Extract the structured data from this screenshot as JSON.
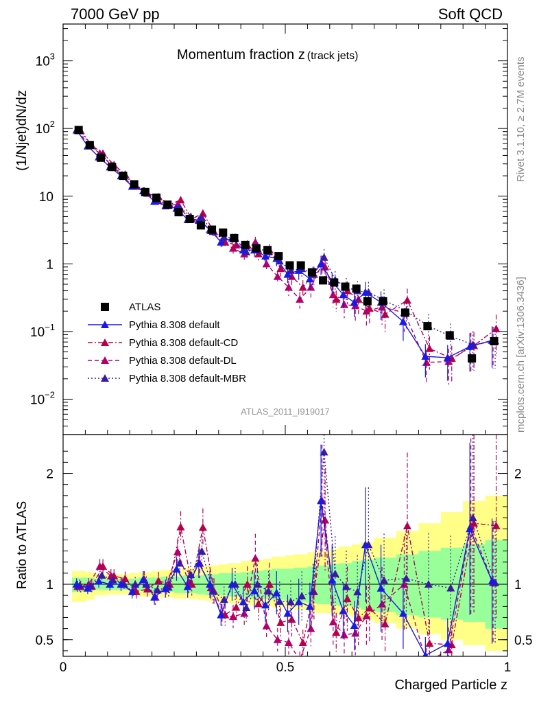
{
  "header": {
    "left": "7000 GeV pp",
    "right": "Soft QCD"
  },
  "side_labels": {
    "rivet": "Rivet 3.1.10, ≥ 2.7M events",
    "mcplots": "mcplots.cern.ch [arXiv:1306.3436]"
  },
  "chart_data": [
    {
      "panel": "main",
      "type": "scatter",
      "title": "Momentum fraction z",
      "title_sub": "(track jets)",
      "ylabel": "(1/Njet)dN/dz",
      "xlabel": "",
      "y_scale": "log",
      "xlim": [
        0,
        1
      ],
      "ylim": [
        0.003,
        3500
      ],
      "y_ticks": [
        {
          "value": 0.01,
          "label": "10",
          "sup": "−2"
        },
        {
          "value": 0.1,
          "label": "10",
          "sup": "−1"
        },
        {
          "value": 1,
          "label": "1",
          "sup": ""
        },
        {
          "value": 10,
          "label": "10",
          "sup": ""
        },
        {
          "value": 100,
          "label": "10",
          "sup": "2"
        },
        {
          "value": 1000,
          "label": "10",
          "sup": "3"
        }
      ],
      "analysis_label": "ATLAS_2011_I919017",
      "legend_position": "bottom-left",
      "x": [
        0.035,
        0.06,
        0.085,
        0.11,
        0.135,
        0.16,
        0.185,
        0.21,
        0.235,
        0.26,
        0.285,
        0.31,
        0.335,
        0.36,
        0.385,
        0.41,
        0.435,
        0.46,
        0.485,
        0.51,
        0.535,
        0.56,
        0.585,
        0.61,
        0.635,
        0.66,
        0.685,
        0.72,
        0.77,
        0.82,
        0.87,
        0.92,
        0.97
      ],
      "series": [
        {
          "name": "ATLAS",
          "color": "#000000",
          "style": "square",
          "values": [
            95,
            57,
            37,
            27,
            20,
            15,
            11.5,
            9.5,
            7.5,
            5.8,
            4.6,
            3.7,
            3.2,
            2.9,
            2.4,
            1.9,
            1.7,
            1.6,
            1.3,
            0.95,
            0.95,
            0.75,
            0.57,
            0.53,
            0.46,
            0.43,
            0.28,
            0.28,
            0.19,
            0.12,
            0.088,
            0.04,
            0.072
          ]
        },
        {
          "name": "Pythia 8.308 default",
          "color": "#1a1ae6",
          "style": "solid",
          "values": [
            95,
            55,
            38,
            27,
            20,
            14,
            12,
            8.4,
            7.2,
            6.6,
            4.5,
            4.4,
            3.2,
            2.1,
            2.4,
            1.6,
            1.6,
            1.3,
            1.2,
            0.7,
            0.8,
            0.6,
            1.0,
            0.55,
            0.35,
            0.27,
            0.38,
            0.27,
            0.14,
            0.043,
            0.041,
            0.06,
            0.074
          ]
        },
        {
          "name": "Pythia 8.308 default-CD",
          "color": "#b8004c",
          "style": "dashdot",
          "values": [
            93,
            56,
            43,
            29,
            21,
            14,
            11,
            9.8,
            7.5,
            8.8,
            4.6,
            5.6,
            3.0,
            2.1,
            1.9,
            1.9,
            1.4,
            1.6,
            0.85,
            0.65,
            0.45,
            0.7,
            0.9,
            0.3,
            0.4,
            0.3,
            0.22,
            0.18,
            0.29,
            0.056,
            0.04,
            0.062,
            0.11
          ]
        },
        {
          "name": "Pythia 8.308 default-DL",
          "color": "#b3006b",
          "style": "dashed",
          "values": [
            93,
            57,
            43,
            29,
            20,
            14,
            12,
            8.4,
            7.4,
            7.5,
            4.7,
            4.4,
            3.1,
            2.1,
            1.7,
            1.4,
            2.1,
            1.0,
            0.65,
            0.45,
            0.3,
            0.45,
            1.0,
            0.35,
            0.25,
            0.24,
            0.2,
            0.23,
            0.19,
            0.035,
            0.036,
            0.061,
            0.073
          ]
        },
        {
          "name": "Pythia 8.308 default-MBR",
          "color": "#3a1aa0",
          "style": "dotted",
          "values": [
            94,
            56,
            40,
            28,
            20,
            15,
            11.5,
            9.0,
            7.3,
            6.9,
            5.0,
            4.8,
            3.0,
            2.5,
            2.4,
            1.5,
            1.7,
            1.5,
            1.1,
            0.8,
            0.85,
            0.7,
            1.25,
            0.58,
            0.45,
            0.4,
            0.38,
            0.29,
            0.2,
            0.12,
            0.085,
            0.064,
            0.073
          ]
        }
      ]
    },
    {
      "panel": "ratio",
      "type": "line",
      "ylabel": "Ratio to ATLAS",
      "xlabel": "Charged Particle z",
      "y_scale": "linear",
      "xlim": [
        0,
        1
      ],
      "ylim": [
        0.35,
        2.35
      ],
      "x_ticks": [
        {
          "value": 0,
          "label": "0"
        },
        {
          "value": 0.5,
          "label": "0.5"
        },
        {
          "value": 1,
          "label": "1"
        }
      ],
      "y_ticks": [
        {
          "value": 0.5,
          "label": "0.5"
        },
        {
          "value": 1,
          "label": "1"
        },
        {
          "value": 2,
          "label": "2"
        }
      ],
      "band_edges": [
        0.02,
        0.05,
        0.07,
        0.1,
        0.12,
        0.15,
        0.17,
        0.2,
        0.22,
        0.25,
        0.27,
        0.3,
        0.32,
        0.35,
        0.37,
        0.4,
        0.42,
        0.45,
        0.47,
        0.5,
        0.52,
        0.55,
        0.57,
        0.6,
        0.62,
        0.65,
        0.67,
        0.7,
        0.75,
        0.8,
        0.85,
        0.9,
        0.95,
        1.0
      ],
      "stat_band": {
        "color": "#99ff99",
        "lower": [
          0.93,
          0.94,
          0.95,
          0.95,
          0.95,
          0.94,
          0.94,
          0.93,
          0.93,
          0.92,
          0.92,
          0.91,
          0.9,
          0.9,
          0.89,
          0.88,
          0.87,
          0.87,
          0.86,
          0.85,
          0.84,
          0.83,
          0.82,
          0.81,
          0.8,
          0.79,
          0.77,
          0.75,
          0.72,
          0.7,
          0.68,
          0.66,
          0.6
        ],
        "upper": [
          1.06,
          1.06,
          1.05,
          1.05,
          1.05,
          1.05,
          1.06,
          1.06,
          1.07,
          1.07,
          1.08,
          1.08,
          1.09,
          1.1,
          1.1,
          1.11,
          1.12,
          1.13,
          1.14,
          1.14,
          1.15,
          1.16,
          1.17,
          1.18,
          1.19,
          1.21,
          1.22,
          1.24,
          1.27,
          1.3,
          1.33,
          1.36,
          1.4
        ]
      },
      "total_band": {
        "color": "#ffff88",
        "lower": [
          0.84,
          0.86,
          0.9,
          0.91,
          0.91,
          0.9,
          0.89,
          0.89,
          0.88,
          0.87,
          0.87,
          0.86,
          0.85,
          0.84,
          0.83,
          0.82,
          0.81,
          0.8,
          0.79,
          0.78,
          0.77,
          0.75,
          0.74,
          0.73,
          0.72,
          0.7,
          0.68,
          0.65,
          0.6,
          0.55,
          0.5,
          0.45,
          0.4
        ],
        "upper": [
          1.12,
          1.11,
          1.09,
          1.09,
          1.09,
          1.1,
          1.11,
          1.12,
          1.13,
          1.14,
          1.15,
          1.16,
          1.17,
          1.18,
          1.19,
          1.21,
          1.22,
          1.23,
          1.25,
          1.26,
          1.27,
          1.29,
          1.3,
          1.32,
          1.34,
          1.36,
          1.38,
          1.42,
          1.48,
          1.55,
          1.65,
          1.75,
          1.8
        ]
      }
    }
  ]
}
